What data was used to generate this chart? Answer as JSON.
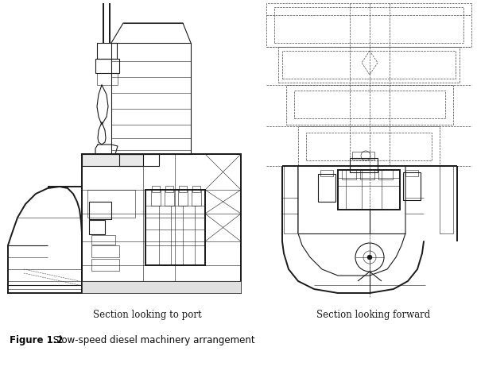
{
  "background_color": "#ffffff",
  "fig_width": 6.0,
  "fig_height": 4.77,
  "dpi": 100,
  "caption_bold": "Figure 1.2",
  "caption_normal": " Slow-speed diesel machinery arrangement",
  "label_left": "Section looking to port",
  "label_right": "Section looking forward",
  "draw_color": "#1a1a1a",
  "dash_color": "#444444",
  "gray_color": "#888888",
  "lw_main": 0.8,
  "lw_thick": 1.4,
  "lw_thin": 0.4,
  "lw_dash": 0.5
}
